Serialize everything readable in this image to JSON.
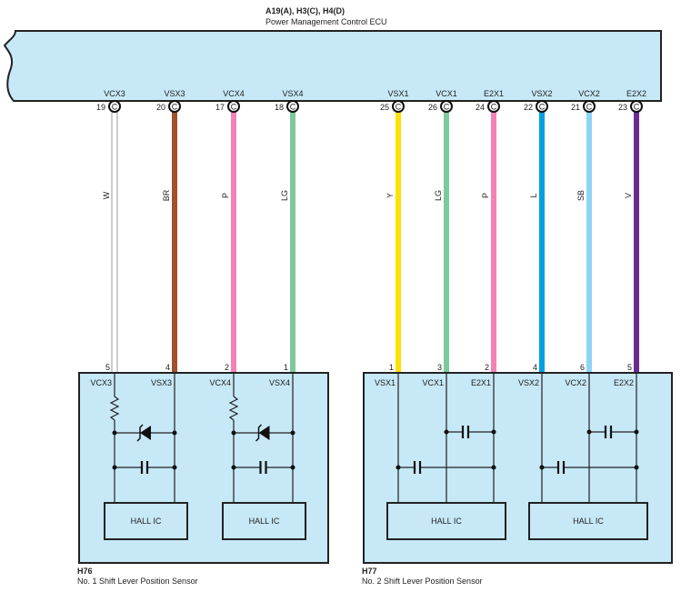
{
  "ecu": {
    "connectors": "A19(A), H3(C), H4(D)",
    "name": "Power Management Control ECU",
    "fill": "#c6e8f7"
  },
  "wires": [
    {
      "signal": "VCX3",
      "ecu_pin": "19",
      "connector": "C",
      "color_code": "W",
      "color": "#ffffff",
      "sensor_pin": "5",
      "sensor": 0
    },
    {
      "signal": "VSX3",
      "ecu_pin": "20",
      "connector": "C",
      "color_code": "BR",
      "color": "#a0522d",
      "sensor_pin": "4",
      "sensor": 0
    },
    {
      "signal": "VCX4",
      "ecu_pin": "17",
      "connector": "C",
      "color_code": "P",
      "color": "#f283b6",
      "sensor_pin": "2",
      "sensor": 0
    },
    {
      "signal": "VSX4",
      "ecu_pin": "18",
      "connector": "C",
      "color_code": "LG",
      "color": "#7dc99c",
      "sensor_pin": "1",
      "sensor": 0
    },
    {
      "signal": "VSX1",
      "ecu_pin": "25",
      "connector": "C",
      "color_code": "Y",
      "color": "#ffe000",
      "sensor_pin": "1",
      "sensor": 1
    },
    {
      "signal": "VCX1",
      "ecu_pin": "26",
      "connector": "C",
      "color_code": "LG",
      "color": "#7dc99c",
      "sensor_pin": "3",
      "sensor": 1
    },
    {
      "signal": "E2X1",
      "ecu_pin": "24",
      "connector": "C",
      "color_code": "P",
      "color": "#f283b6",
      "sensor_pin": "2",
      "sensor": 1
    },
    {
      "signal": "VSX2",
      "ecu_pin": "22",
      "connector": "C",
      "color_code": "L",
      "color": "#00a0e0",
      "sensor_pin": "4",
      "sensor": 1
    },
    {
      "signal": "VCX2",
      "ecu_pin": "21",
      "connector": "C",
      "color_code": "SB",
      "color": "#8fd4f2",
      "sensor_pin": "6",
      "sensor": 1
    },
    {
      "signal": "E2X2",
      "ecu_pin": "23",
      "connector": "C",
      "color_code": "V",
      "color": "#6a2c91",
      "sensor_pin": "5",
      "sensor": 1
    }
  ],
  "sensors": [
    {
      "id": "H76",
      "name": "No.  1 Shift Lever Position Sensor",
      "pins": [
        "VCX3",
        "VSX3",
        "VCX4",
        "VSX4"
      ],
      "ic_labels": [
        "HALL IC",
        "HALL IC"
      ]
    },
    {
      "id": "H77",
      "name": "No.  2 Shift Lever Position Sensor",
      "pins": [
        "VSX1",
        "VCX1",
        "E2X1",
        "VSX2",
        "VCX2",
        "E2X2"
      ],
      "ic_labels": [
        "HALL IC",
        "HALL IC"
      ]
    }
  ]
}
